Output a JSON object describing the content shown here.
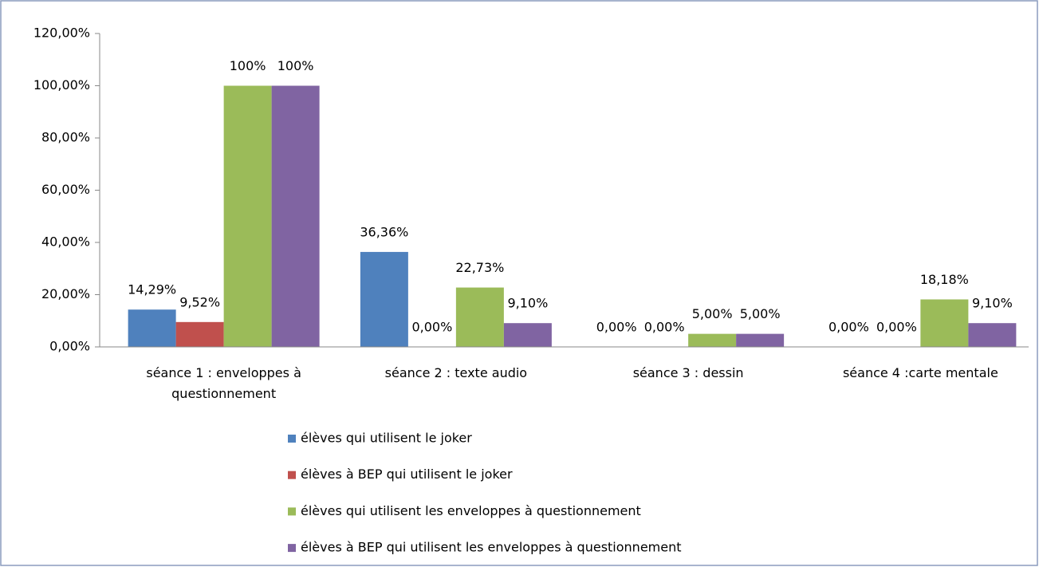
{
  "chart_data": {
    "type": "bar",
    "categories": [
      "séance 1 : enveloppes à questionnement",
      "séance 2 : texte audio",
      "séance 3 : dessin",
      "séance 4 :carte mentale"
    ],
    "series": [
      {
        "name": "élèves qui utilisent le joker",
        "color": "#4f81bd",
        "values": [
          14.29,
          36.36,
          0,
          0
        ],
        "value_labels": [
          "14,29%",
          "36,36%",
          "0,00%",
          "0,00%"
        ]
      },
      {
        "name": "élèves à BEP qui utilisent le joker",
        "color": "#c0504d",
        "values": [
          9.52,
          0,
          0,
          0
        ],
        "value_labels": [
          "9,52%",
          "0,00%",
          "0,00%",
          "0,00%"
        ]
      },
      {
        "name": "élèves qui utilisent les enveloppes à questionnement",
        "color": "#9bbb59",
        "values": [
          100,
          22.73,
          5,
          18.18
        ],
        "value_labels": [
          "100%",
          "22,73%",
          "5,00%",
          "18,18%"
        ]
      },
      {
        "name": "élèves à BEP qui utilisent les enveloppes à questionnement",
        "color": "#8064a2",
        "values": [
          100,
          9.1,
          5,
          9.1
        ],
        "value_labels": [
          "100%",
          "9,10%",
          "5,00%",
          "9,10%"
        ]
      }
    ],
    "ylim": [
      0,
      120
    ],
    "yticks": [
      {
        "value": 0,
        "label": "0,00%"
      },
      {
        "value": 20,
        "label": "20,00%"
      },
      {
        "value": 40,
        "label": "40,00%"
      },
      {
        "value": 60,
        "label": "60,00%"
      },
      {
        "value": 80,
        "label": "80,00%"
      },
      {
        "value": 100,
        "label": "100,00%"
      },
      {
        "value": 120,
        "label": "120,00%"
      }
    ],
    "grid": false,
    "legend": "bottom"
  }
}
